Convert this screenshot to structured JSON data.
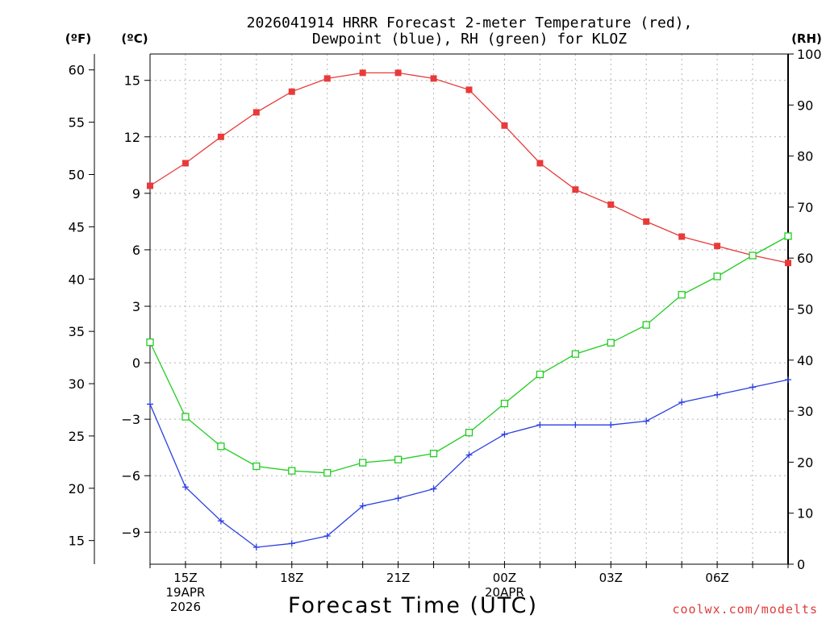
{
  "chart_data": {
    "type": "line",
    "title_lines": [
      "2026041914 HRRR Forecast 2-meter Temperature (red),",
      "Dewpoint (blue), RH (green) for KLOZ"
    ],
    "xlabel": "Forecast Time (UTC)",
    "credit": "coolwx.com/modelts",
    "units": {
      "fahrenheit": "(ºF)",
      "celsius": "(ºC)",
      "rh": "(RH)"
    },
    "x_hours": [
      14,
      15,
      16,
      17,
      18,
      19,
      20,
      21,
      22,
      23,
      24,
      25,
      26,
      27,
      28,
      29,
      30,
      31,
      32
    ],
    "x_ticks": [
      {
        "hour": 15,
        "lines": [
          "15Z",
          "19APR",
          "2026"
        ]
      },
      {
        "hour": 18,
        "lines": [
          "18Z"
        ]
      },
      {
        "hour": 21,
        "lines": [
          "21Z"
        ]
      },
      {
        "hour": 24,
        "lines": [
          "00Z",
          "20APR"
        ]
      },
      {
        "hour": 27,
        "lines": [
          "03Z"
        ]
      },
      {
        "hour": 30,
        "lines": [
          "06Z"
        ]
      }
    ],
    "celsius_range": [
      -10.7,
      16.4
    ],
    "celsius_ticks": [
      -9,
      -6,
      -3,
      0,
      3,
      6,
      9,
      12,
      15
    ],
    "fahrenheit_ticks": [
      15,
      20,
      25,
      30,
      35,
      40,
      45,
      50,
      55,
      60
    ],
    "rh_range": [
      0,
      100
    ],
    "rh_ticks": [
      0,
      10,
      20,
      30,
      40,
      50,
      60,
      70,
      80,
      90,
      100
    ],
    "series": [
      {
        "name": "Temperature",
        "units": "degC",
        "color": "#e83a3a",
        "marker": "filled-square",
        "values": [
          9.4,
          10.6,
          12.0,
          13.3,
          14.4,
          15.1,
          15.4,
          15.4,
          15.1,
          14.5,
          12.6,
          10.6,
          9.2,
          8.4,
          7.5,
          6.7,
          6.2,
          5.7,
          5.3
        ]
      },
      {
        "name": "Dewpoint",
        "units": "degC",
        "color": "#2a3fe0",
        "marker": "plus",
        "values": [
          -2.2,
          -6.6,
          -8.4,
          -9.8,
          -9.6,
          -9.2,
          -7.6,
          -7.2,
          -6.7,
          -4.9,
          -3.8,
          -3.3,
          -3.3,
          -3.3,
          -3.1,
          -2.1,
          -1.7,
          -1.3,
          -0.9
        ]
      },
      {
        "name": "RH",
        "units": "percent",
        "color": "#22cc22",
        "marker": "open-square",
        "values": [
          43.5,
          28.9,
          23.1,
          19.2,
          18.3,
          17.9,
          19.9,
          20.5,
          21.7,
          25.8,
          31.5,
          37.2,
          41.2,
          43.4,
          46.9,
          52.8,
          56.4,
          60.5,
          64.3
        ]
      }
    ]
  }
}
